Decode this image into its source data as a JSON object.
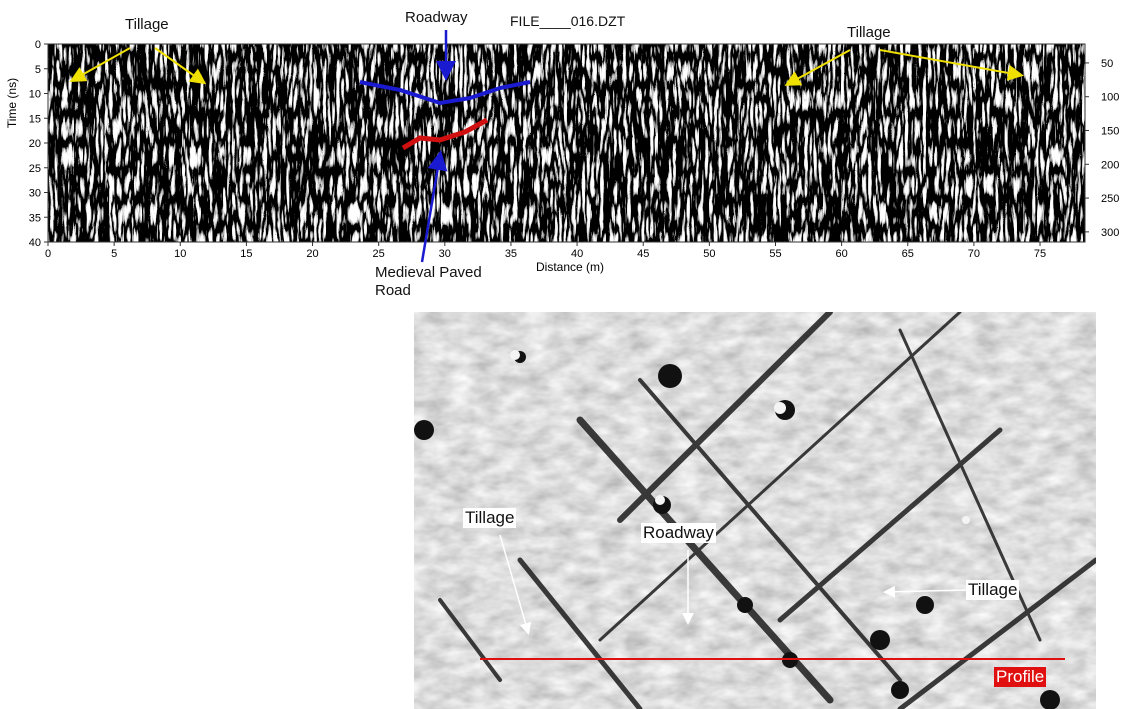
{
  "radargram": {
    "file": "FILE____016.DZT",
    "x_label": "Distance (m)",
    "y_label": "Time (ns)",
    "xlim": [
      0,
      78.4
    ],
    "xticks": [
      0,
      5,
      10,
      15,
      20,
      25,
      30,
      35,
      40,
      45,
      50,
      55,
      60,
      65,
      70,
      75
    ],
    "ylim": [
      0,
      40
    ],
    "yticks": [
      0,
      5,
      10,
      15,
      20,
      25,
      30,
      35,
      40
    ],
    "y2lim": [
      22,
      315
    ],
    "y2ticks": [
      50,
      100,
      150,
      200,
      250,
      300
    ],
    "annotations": {
      "tillage_left": "Tillage",
      "roadway": "Roadway",
      "tillage_right": "Tillage",
      "paved_road": "Medieval Paved Road"
    }
  },
  "map": {
    "labels": {
      "tillage_left": "Tillage",
      "roadway": "Roadway",
      "tillage_right": "Tillage",
      "profile": "Profile"
    }
  }
}
